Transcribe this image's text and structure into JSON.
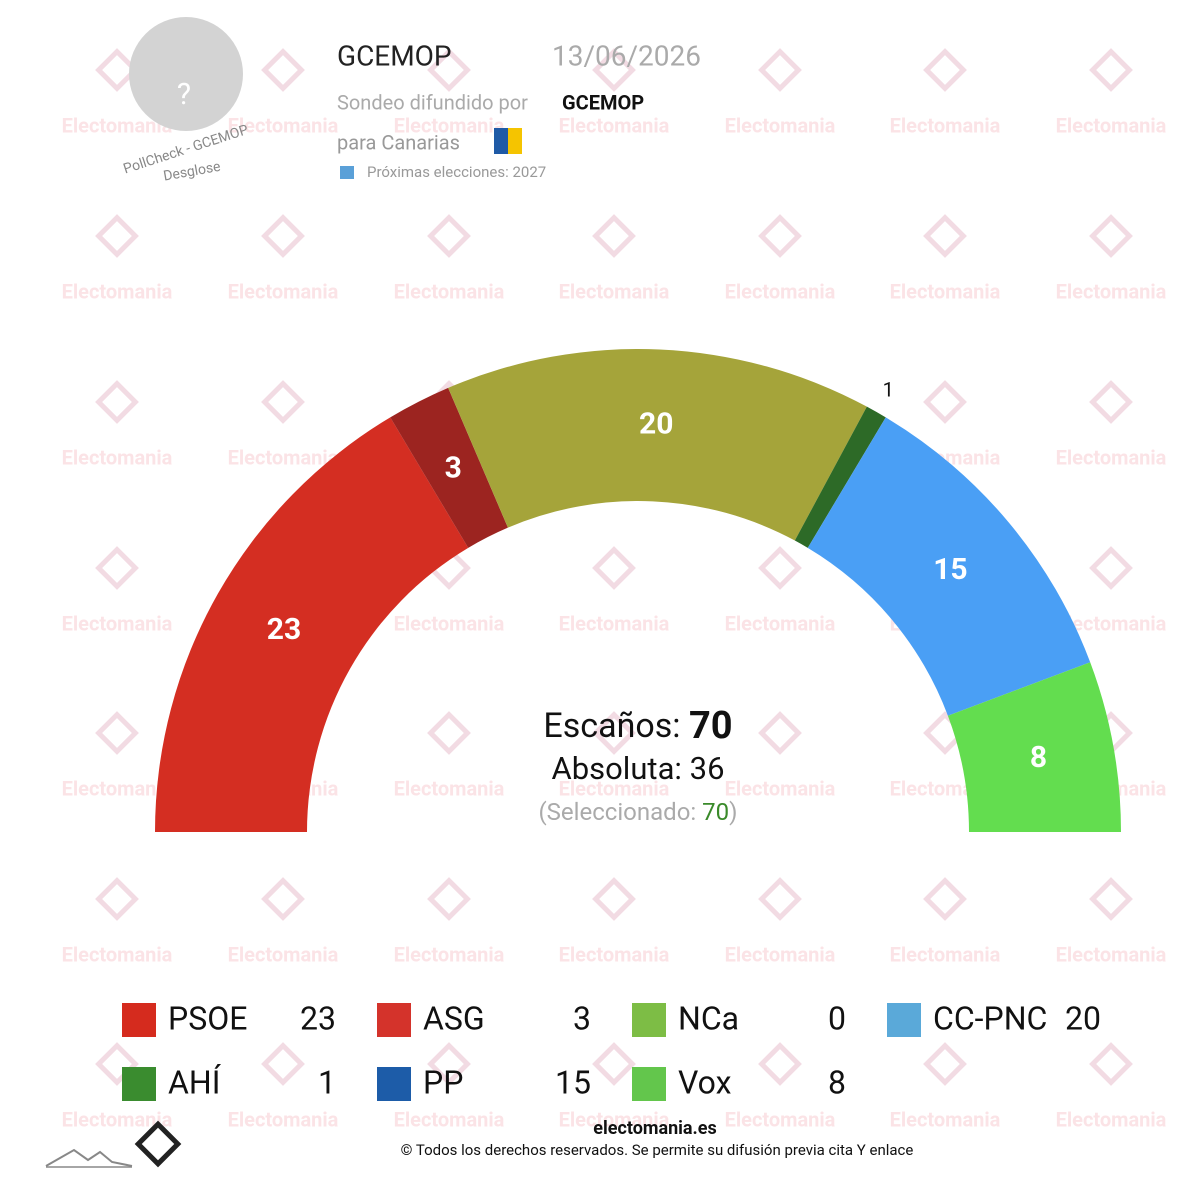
{
  "header": {
    "avatar": "?",
    "badge": "PollCheck - GCEMOP",
    "breakdown": "Desglose",
    "pollster": "GCEMOP",
    "date": "13/06/2026",
    "published_by": "Sondeo difundido por",
    "publisher": "GCEMOP",
    "region": "para Canarias",
    "next_election": "Próximas elecciones: 2027"
  },
  "chart_data": {
    "type": "parliament",
    "series": [
      {
        "name": "PSOE",
        "color": "#d42e22",
        "icon_color": "#d52b1e",
        "values": [
          23
        ]
      },
      {
        "name": "ASG",
        "color": "#9c2420",
        "icon_color": "#d4332b",
        "values": [
          3
        ]
      },
      {
        "name": "NCa",
        "color": "#7dbd45",
        "icon_color": "#7dbd45",
        "values": [
          0
        ]
      },
      {
        "name": "CC-PNC",
        "color": "#a5a43a",
        "icon_color": "#5aa9d9",
        "values": [
          20
        ]
      },
      {
        "name": "AHÍ",
        "color": "#2d6a27",
        "icon_color": "#3a8c2f",
        "values": [
          1
        ]
      },
      {
        "name": "PP",
        "color": "#4a9ff5",
        "icon_color": "#1d5ca8",
        "values": [
          15
        ]
      },
      {
        "name": "Vox",
        "color": "#63dd4f",
        "icon_color": "#63c64c",
        "values": [
          8
        ]
      }
    ],
    "seats_label": "Escaños:",
    "total_seats": 70,
    "majority_label": "Absoluta:",
    "majority": 36,
    "selected_label": "(Seleccionado:",
    "selected": 70,
    "selected_close": ")"
  },
  "watermark": "Electomania",
  "footer": {
    "site": "electomania.es",
    "copyright": "© Todos los derechos reservados. Se permite su difusión previa cita Y enlace"
  }
}
